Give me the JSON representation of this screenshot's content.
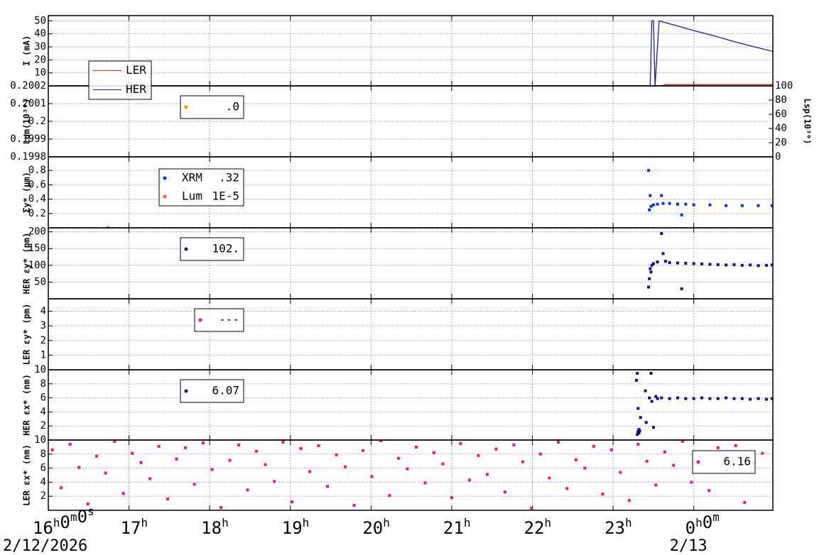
{
  "x_axis": {
    "xlim": [
      16,
      24.98
    ],
    "xticks": [
      {
        "value": 16,
        "label": "16h0m0s"
      },
      {
        "value": 17,
        "label": "17h"
      },
      {
        "value": 18,
        "label": "18h"
      },
      {
        "value": 19,
        "label": "19h"
      },
      {
        "value": 20,
        "label": "20h"
      },
      {
        "value": 21,
        "label": "21h"
      },
      {
        "value": 22,
        "label": "22h"
      },
      {
        "value": 23,
        "label": "23h"
      },
      {
        "value": 24,
        "label": "0h0m"
      }
    ],
    "date_labels": [
      {
        "value": 16,
        "label": "2/12/2026"
      },
      {
        "value": 24,
        "label": "2/13"
      }
    ]
  },
  "chart_data": [
    {
      "type": "line",
      "ylabel": "I (mA)",
      "ylim": [
        0,
        54
      ],
      "yticks": [
        10,
        20,
        30,
        40,
        50
      ],
      "grid": true,
      "series": [
        {
          "name": "LER",
          "color": "#d03020",
          "x": [
            16,
            23.6,
            23.65,
            24.98
          ],
          "values": [
            0,
            0,
            1,
            1
          ]
        },
        {
          "name": "HER",
          "color": "#1a1aa0",
          "x": [
            16,
            23.46,
            23.48,
            23.5,
            23.52,
            23.57,
            23.8,
            24.0,
            24.25,
            24.5,
            24.75,
            24.98
          ],
          "values": [
            0,
            0,
            50,
            50,
            0,
            50,
            46,
            42.5,
            38.5,
            34,
            30,
            26.5
          ]
        }
      ]
    },
    {
      "type": "scatter",
      "ylabel": "Lum(10³⁰)",
      "ylim": [
        0.1998,
        0.2002
      ],
      "yticks": [
        0.1998,
        0.1999,
        0.2,
        0.2001,
        0.2002
      ],
      "grid": true,
      "y2label": "Lsp(10³⁰)",
      "y2lim": [
        0,
        100
      ],
      "y2ticks": [
        0,
        20,
        40,
        60,
        80,
        100
      ],
      "series": [
        {
          "legend_value": ".0",
          "color": "#e0a000",
          "x": [],
          "values": []
        }
      ]
    },
    {
      "type": "scatter",
      "ylabel": "Σy* (µm)",
      "ylim": [
        0,
        0.99
      ],
      "yticks": [
        0.2,
        0.4,
        0.6,
        0.8
      ],
      "grid": true,
      "series": [
        {
          "name": "XRM",
          "legend_value": ".32",
          "color": "#1030e0",
          "x": [
            23.44,
            23.45,
            23.46,
            23.47,
            23.5,
            23.55,
            23.6,
            23.62,
            23.7,
            23.8,
            23.85,
            23.9,
            24.0,
            24.2,
            24.4,
            24.6,
            24.8,
            24.97
          ],
          "values": [
            0.8,
            0.25,
            0.45,
            0.3,
            0.32,
            0.33,
            0.45,
            0.34,
            0.34,
            0.33,
            0.18,
            0.33,
            0.32,
            0.32,
            0.31,
            0.31,
            0.31,
            0.31
          ]
        },
        {
          "name": "Lum",
          "legend_value": "1E-5",
          "color": "#f06030",
          "x": [
            16.74
          ],
          "values": [
            0
          ]
        }
      ]
    },
    {
      "type": "scatter",
      "ylabel": "HER εy* (pm)",
      "ylim": [
        0,
        212
      ],
      "yticks": [
        50,
        100,
        150,
        200
      ],
      "grid": true,
      "series": [
        {
          "legend_value": "102.",
          "color": "#101080",
          "x": [
            23.44,
            23.45,
            23.46,
            23.47,
            23.48,
            23.5,
            23.55,
            23.6,
            23.62,
            23.65,
            23.7,
            23.8,
            23.85,
            23.9,
            24.0,
            24.1,
            24.2,
            24.3,
            24.4,
            24.5,
            24.6,
            24.7,
            24.8,
            24.9,
            24.97
          ],
          "values": [
            35,
            60,
            90,
            80,
            100,
            105,
            110,
            195,
            135,
            112,
            108,
            107,
            30,
            106,
            105,
            104,
            103,
            102,
            101,
            102,
            100,
            101,
            99,
            100,
            101
          ]
        }
      ]
    },
    {
      "type": "scatter",
      "ylabel": "LER εy* (pm)",
      "ylim": [
        0,
        4.85
      ],
      "yticks": [
        1,
        2,
        3,
        4
      ],
      "grid": true,
      "series": [
        {
          "legend_value": "---",
          "color": "#f0108a",
          "x": [],
          "values": []
        }
      ]
    },
    {
      "type": "scatter",
      "ylabel": "HER εx* (nm)",
      "ylim": [
        0,
        10
      ],
      "yticks": [
        2,
        4,
        6,
        8,
        10
      ],
      "grid": true,
      "series": [
        {
          "legend_value": "6.07",
          "color": "#101080",
          "x": [
            23.3,
            23.31,
            23.32,
            23.32,
            23.33,
            23.3,
            23.29,
            23.31,
            23.34,
            23.4,
            23.41,
            23.45,
            23.47,
            23.48,
            23.5,
            23.53,
            23.55,
            23.6,
            23.7,
            23.8,
            23.9,
            24.0,
            24.1,
            24.2,
            24.3,
            24.4,
            24.5,
            24.6,
            24.7,
            24.8,
            24.9,
            24.97
          ],
          "values": [
            0.8,
            1.2,
            1.5,
            1.0,
            1.3,
            9.5,
            8.5,
            4.5,
            3.2,
            7.0,
            2.5,
            6.0,
            9.5,
            5.5,
            1.8,
            6.2,
            5.9,
            6.0,
            5.9,
            6.0,
            5.9,
            5.9,
            6.0,
            5.9,
            5.9,
            6.0,
            5.9,
            5.9,
            5.8,
            5.9,
            5.8,
            5.9
          ]
        }
      ]
    },
    {
      "type": "scatter",
      "ylabel": "LER εx* (nm)",
      "ylim": [
        0,
        10
      ],
      "yticks": [
        2,
        4,
        6,
        8,
        10
      ],
      "grid": true,
      "series": [
        {
          "legend_value": "6.16",
          "color": "#f0108a",
          "x": [
            16.05,
            16.16,
            16.27,
            16.38,
            16.49,
            16.6,
            16.71,
            16.82,
            16.93,
            17.04,
            17.15,
            17.26,
            17.37,
            17.48,
            17.59,
            17.7,
            17.81,
            17.92,
            18.03,
            18.14,
            18.25,
            18.36,
            18.47,
            18.58,
            18.69,
            18.8,
            18.91,
            19.02,
            19.13,
            19.24,
            19.35,
            19.46,
            19.57,
            19.68,
            19.79,
            19.9,
            20.01,
            20.12,
            20.23,
            20.34,
            20.45,
            20.56,
            20.67,
            20.78,
            20.89,
            21,
            21.11,
            21.22,
            21.33,
            21.44,
            21.55,
            21.66,
            21.77,
            21.88,
            21.99,
            22.1,
            22.21,
            22.32,
            22.43,
            22.54,
            22.65,
            22.76,
            22.87,
            22.98,
            23.09,
            23.2,
            23.31,
            23.42,
            23.53,
            23.64,
            23.75,
            23.86,
            23.97,
            24.08,
            24.19,
            24.3,
            24.41,
            24.52,
            24.63,
            24.74,
            24.85
          ],
          "values": [
            8.6,
            3.2,
            9.4,
            6.1,
            0.9,
            7.7,
            5.3,
            9.8,
            2.4,
            8.1,
            6.8,
            4.5,
            9.1,
            1.6,
            7.3,
            8.9,
            3.7,
            9.6,
            5.8,
            0.4,
            7.1,
            9.3,
            2.9,
            8.4,
            6.5,
            4.1,
            9.7,
            1.2,
            8.8,
            5.5,
            9.2,
            3.4,
            7.9,
            6.2,
            0.7,
            8.5,
            4.8,
            9.9,
            2.1,
            7.4,
            5.9,
            9.0,
            3.9,
            8.2,
            6.6,
            1.8,
            9.5,
            4.3,
            7.8,
            5.1,
            8.7,
            2.6,
            9.3,
            6.9,
            0.3,
            8.0,
            4.6,
            9.7,
            3.1,
            7.2,
            6.0,
            9.1,
            2.3,
            8.6,
            5.4,
            1.4,
            9.4,
            7.0,
            3.6,
            8.3,
            6.4,
            9.8,
            4.0,
            7.6,
            2.8,
            8.9,
            5.7,
            9.2,
            1.1,
            6.7,
            8.1
          ]
        }
      ]
    }
  ]
}
